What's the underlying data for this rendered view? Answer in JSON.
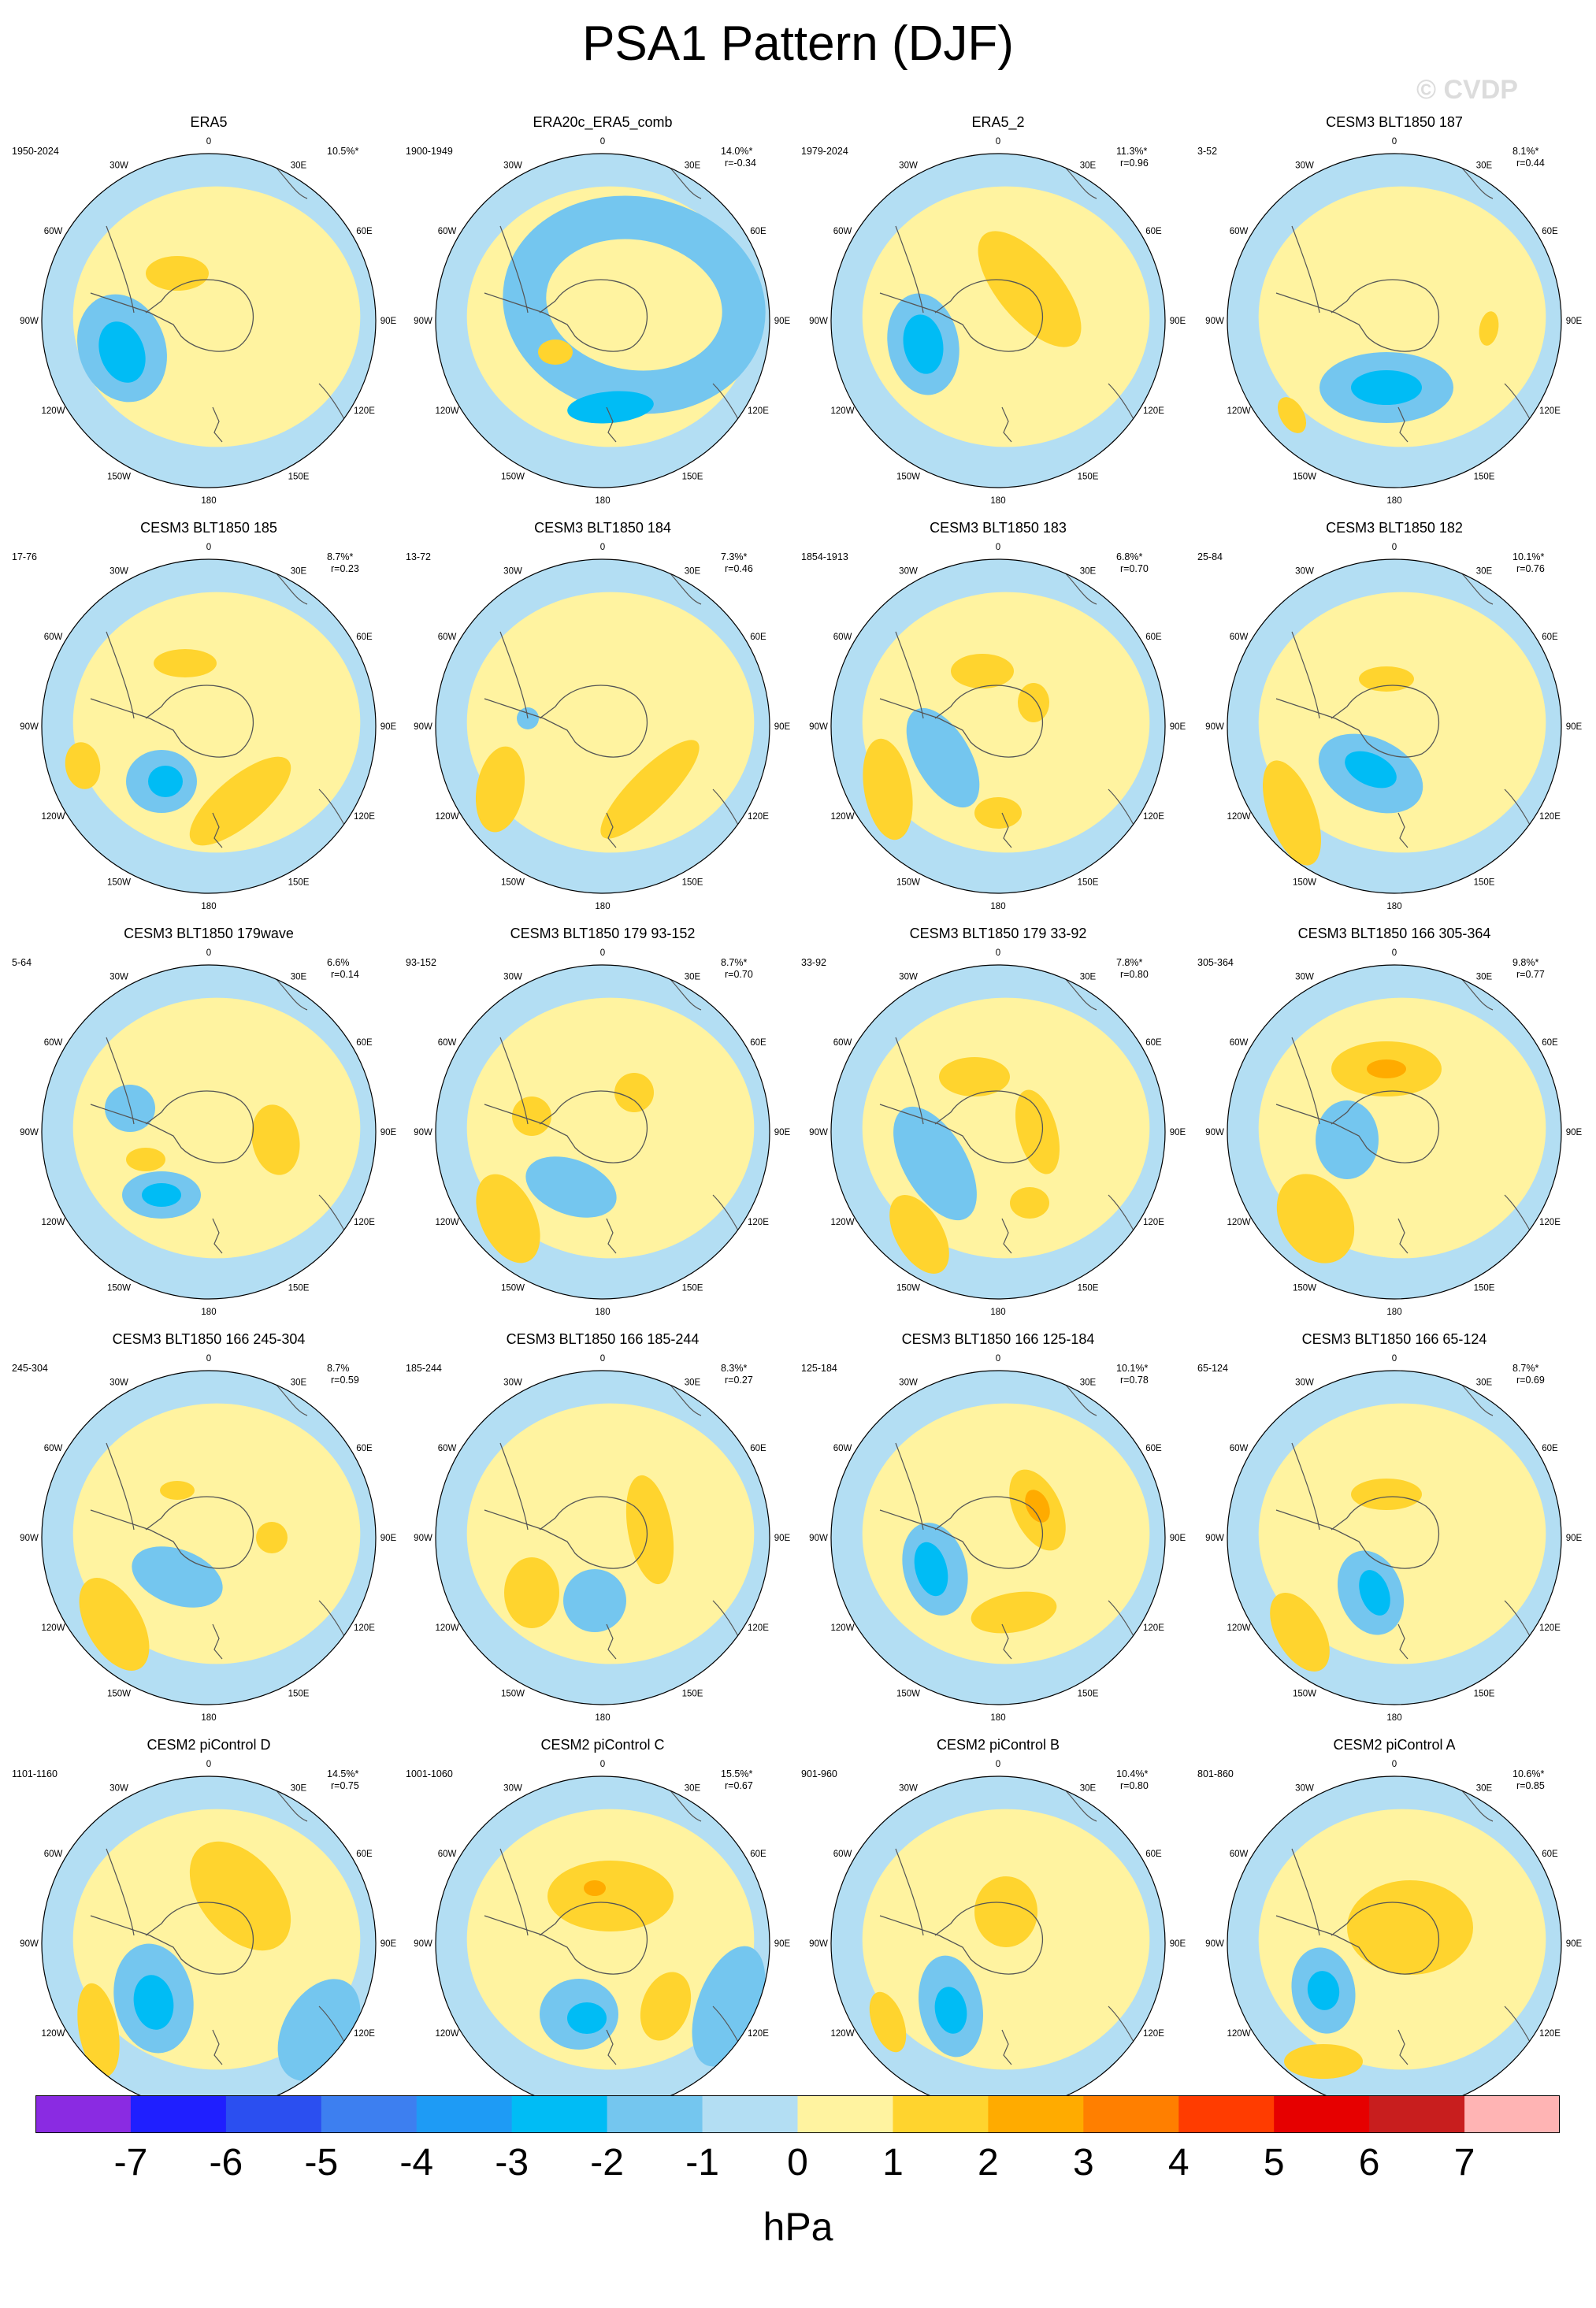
{
  "title": "PSA1 Pattern (DJF)",
  "copyright": "© CVDP",
  "colors": {
    "ocean_neg1": "#b3def3",
    "neg2": "#74c6ef",
    "neg3": "#00bcf5",
    "land_pos1": "#fff3a0",
    "pos2": "#ffd42e",
    "pos3": "#ffab00",
    "coast": "#555555",
    "rim": "#000000"
  },
  "longitude_labels": {
    "top": "0",
    "bottom": "180",
    "e30": "30E",
    "e60": "60E",
    "e90": "90E",
    "e120": "120E",
    "e150": "150E",
    "w30": "30W",
    "w60": "60W",
    "w90": "90W",
    "w120": "120W",
    "w150": "150W"
  },
  "chart_data": {
    "type": "heatmap",
    "title": "PSA1 Pattern (DJF)",
    "projection": "south polar stereographic",
    "variable_units": "hPa",
    "colorbar": {
      "units": "hPa",
      "ticks": [
        "-7",
        "-6",
        "-5",
        "-4",
        "-3",
        "-2",
        "-1",
        "0",
        "1",
        "2",
        "3",
        "4",
        "5",
        "6",
        "7"
      ],
      "colors": [
        "#8a2be2",
        "#1f1fff",
        "#2b4ff0",
        "#3d7ff0",
        "#1e9bf5",
        "#00bcf5",
        "#74c6ef",
        "#b3def3",
        "#fff3a0",
        "#ffd42e",
        "#ffab00",
        "#ff7f00",
        "#ff3c00",
        "#e60000",
        "#c81e1e",
        "#ffb4b4"
      ]
    },
    "panels": [
      {
        "title": "ERA5",
        "years": "1950-2024",
        "pct": "10.5%*",
        "r": ""
      },
      {
        "title": "ERA20c_ERA5_comb",
        "years": "1900-1949",
        "pct": "14.0%*",
        "r": "r=-0.34"
      },
      {
        "title": "ERA5_2",
        "years": "1979-2024",
        "pct": "11.3%*",
        "r": "r=0.96"
      },
      {
        "title": "CESM3 BLT1850 187",
        "years": "3-52",
        "pct": "8.1%*",
        "r": "r=0.44"
      },
      {
        "title": "CESM3 BLT1850 185",
        "years": "17-76",
        "pct": "8.7%*",
        "r": "r=0.23"
      },
      {
        "title": "CESM3 BLT1850 184",
        "years": "13-72",
        "pct": "7.3%*",
        "r": "r=0.46"
      },
      {
        "title": "CESM3 BLT1850 183",
        "years": "1854-1913",
        "pct": "6.8%*",
        "r": "r=0.70"
      },
      {
        "title": "CESM3 BLT1850 182",
        "years": "25-84",
        "pct": "10.1%*",
        "r": "r=0.76"
      },
      {
        "title": "CESM3 BLT1850 179wave",
        "years": "5-64",
        "pct": "6.6%",
        "r": "r=0.14"
      },
      {
        "title": "CESM3 BLT1850 179 93-152",
        "years": "93-152",
        "pct": "8.7%*",
        "r": "r=0.70"
      },
      {
        "title": "CESM3 BLT1850 179 33-92",
        "years": "33-92",
        "pct": "7.8%*",
        "r": "r=0.80"
      },
      {
        "title": "CESM3 BLT1850 166 305-364",
        "years": "305-364",
        "pct": "9.8%*",
        "r": "r=0.77"
      },
      {
        "title": "CESM3 BLT1850 166 245-304",
        "years": "245-304",
        "pct": "8.7%",
        "r": "r=0.59"
      },
      {
        "title": "CESM3 BLT1850 166 185-244",
        "years": "185-244",
        "pct": "8.3%*",
        "r": "r=0.27"
      },
      {
        "title": "CESM3 BLT1850 166 125-184",
        "years": "125-184",
        "pct": "10.1%*",
        "r": "r=0.78"
      },
      {
        "title": "CESM3 BLT1850 166 65-124",
        "years": "65-124",
        "pct": "8.7%*",
        "r": "r=0.69"
      },
      {
        "title": "CESM2 piControl D",
        "years": "1101-1160",
        "pct": "14.5%*",
        "r": "r=0.75"
      },
      {
        "title": "CESM2 piControl C",
        "years": "1001-1060",
        "pct": "15.5%*",
        "r": "r=0.67"
      },
      {
        "title": "CESM2 piControl B",
        "years": "901-960",
        "pct": "10.4%*",
        "r": "r=0.80"
      },
      {
        "title": "CESM2 piControl A",
        "years": "801-860",
        "pct": "10.6%*",
        "r": "r=0.85"
      }
    ]
  }
}
